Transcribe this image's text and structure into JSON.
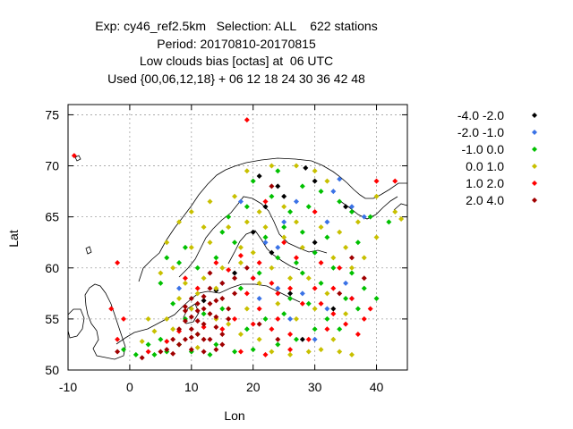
{
  "chart_data": {
    "type": "scatter",
    "title_lines": [
      "Exp: cy46_ref2.5km   Selection: ALL    622 stations",
      "Period: 20170810-20170815",
      "Low clouds bias [octas] at  06 UTC",
      "Used {00,06,12,18} + 06 12 18 24 30 36 42 48"
    ],
    "xlabel": "Lon",
    "ylabel": "Lat",
    "xlim": [
      -10,
      45
    ],
    "ylim": [
      50,
      76
    ],
    "xticks": [
      -10,
      0,
      10,
      20,
      30,
      40
    ],
    "yticks": [
      50,
      55,
      60,
      65,
      70,
      75
    ],
    "grid": true,
    "legend_position": "right",
    "series": [
      {
        "name": "-4.0 -2.0",
        "color": "#000000",
        "points": [
          [
            28.5,
            69.8
          ],
          [
            30,
            68.5
          ],
          [
            25,
            67
          ],
          [
            22,
            66
          ],
          [
            20,
            63.5
          ],
          [
            30,
            62.5
          ],
          [
            23,
            61.5
          ],
          [
            17,
            59.5
          ],
          [
            14,
            57.8
          ],
          [
            12,
            56.8
          ],
          [
            28,
            53
          ],
          [
            33,
            56
          ],
          [
            26,
            57.5
          ],
          [
            35,
            66
          ],
          [
            21,
            69
          ],
          [
            24,
            68
          ]
        ]
      },
      {
        "name": "-2.0 -1.0",
        "color": "#3a72e6",
        "points": [
          [
            34,
            68.7
          ],
          [
            33,
            67.5
          ],
          [
            36,
            66
          ],
          [
            25,
            64.5
          ],
          [
            22,
            62.5
          ],
          [
            30,
            61.5
          ],
          [
            24,
            58
          ],
          [
            35,
            58.5
          ],
          [
            32,
            56
          ],
          [
            26,
            55
          ],
          [
            30,
            53
          ],
          [
            20,
            59
          ],
          [
            15,
            58.5
          ],
          [
            8,
            58
          ],
          [
            18,
            66.5
          ],
          [
            32,
            64.5
          ],
          [
            38,
            65
          ],
          [
            21,
            57
          ],
          [
            28,
            57.5
          ],
          [
            36,
            57
          ],
          [
            24,
            62
          ],
          [
            27,
            66.5
          ]
        ]
      },
      {
        "name": "-1.0 0.0",
        "color": "#00c000",
        "points": [
          [
            24,
            69.5
          ],
          [
            28,
            68
          ],
          [
            20,
            68.5
          ],
          [
            31,
            67.5
          ],
          [
            34,
            66.5
          ],
          [
            36,
            65.5
          ],
          [
            39,
            65
          ],
          [
            42,
            64.5
          ],
          [
            25,
            64
          ],
          [
            22,
            63
          ],
          [
            28,
            63.5
          ],
          [
            32,
            63
          ],
          [
            37,
            62.5
          ],
          [
            30,
            61.5
          ],
          [
            27,
            60.5
          ],
          [
            33,
            60
          ],
          [
            36,
            59.5
          ],
          [
            38,
            58
          ],
          [
            35,
            57
          ],
          [
            32,
            55
          ],
          [
            30,
            54
          ],
          [
            27,
            53
          ],
          [
            24,
            52.5
          ],
          [
            20,
            52
          ],
          [
            17,
            51.8
          ],
          [
            14,
            52.5
          ],
          [
            11,
            53.5
          ],
          [
            8,
            52.5
          ],
          [
            6,
            51.8
          ],
          [
            4,
            51.5
          ],
          [
            3,
            52.5
          ],
          [
            5,
            53
          ],
          [
            1,
            51.5
          ],
          [
            -1,
            52
          ],
          [
            9,
            55
          ],
          [
            12,
            55.5
          ],
          [
            15,
            56
          ],
          [
            18,
            58
          ],
          [
            21,
            59.5
          ],
          [
            24,
            61
          ],
          [
            17,
            62.5
          ],
          [
            14,
            61
          ],
          [
            11,
            60
          ],
          [
            8,
            60.5
          ],
          [
            6,
            61
          ],
          [
            16,
            65
          ],
          [
            19,
            66
          ],
          [
            23,
            67
          ],
          [
            26,
            65.5
          ],
          [
            29,
            66
          ],
          [
            15,
            63.5
          ],
          [
            9,
            62
          ],
          [
            26,
            57
          ],
          [
            29,
            56.5
          ],
          [
            34,
            54
          ],
          [
            37,
            56
          ],
          [
            40,
            57
          ],
          [
            25,
            55.5
          ],
          [
            22,
            55
          ],
          [
            19,
            54
          ],
          [
            10,
            51.8
          ],
          [
            13,
            51.5
          ],
          [
            7,
            56.5
          ],
          [
            5,
            58.5
          ],
          [
            31,
            58.5
          ],
          [
            28,
            59.5
          ]
        ]
      },
      {
        "name": "0.0 1.0",
        "color": "#c8c000",
        "points": [
          [
            19,
            69.5
          ],
          [
            23,
            70
          ],
          [
            27,
            70
          ],
          [
            30,
            69.5
          ],
          [
            32,
            68.5
          ],
          [
            40,
            67
          ],
          [
            43,
            65.5
          ],
          [
            44,
            64.8
          ],
          [
            37,
            64.5
          ],
          [
            34,
            63.5
          ],
          [
            31,
            64
          ],
          [
            28,
            62
          ],
          [
            25,
            63
          ],
          [
            22,
            64
          ],
          [
            19,
            64.5
          ],
          [
            16,
            64
          ],
          [
            13,
            62.5
          ],
          [
            10,
            62
          ],
          [
            7,
            60
          ],
          [
            5,
            59.5
          ],
          [
            9,
            58.5
          ],
          [
            12,
            59
          ],
          [
            15,
            60
          ],
          [
            18,
            60.5
          ],
          [
            20,
            61.5
          ],
          [
            23,
            60
          ],
          [
            26,
            59
          ],
          [
            29,
            59
          ],
          [
            32,
            57.5
          ],
          [
            35,
            55.5
          ],
          [
            33,
            53
          ],
          [
            31,
            52
          ],
          [
            29,
            51.8
          ],
          [
            26,
            51.5
          ],
          [
            23,
            51.8
          ],
          [
            21,
            53
          ],
          [
            18,
            53.5
          ],
          [
            16,
            54.5
          ],
          [
            14,
            55
          ],
          [
            10,
            56
          ],
          [
            8,
            57
          ],
          [
            6,
            55
          ],
          [
            4,
            53.8
          ],
          [
            2,
            52.8
          ],
          [
            7,
            54
          ],
          [
            11,
            52.2
          ],
          [
            3,
            55
          ],
          [
            24,
            56.5
          ],
          [
            27,
            55
          ],
          [
            30,
            56
          ],
          [
            21,
            58.5
          ],
          [
            19,
            56
          ],
          [
            14,
            58
          ],
          [
            11,
            57.5
          ],
          [
            25,
            66
          ],
          [
            27,
            64.5
          ],
          [
            17,
            67
          ],
          [
            21,
            65.5
          ],
          [
            12,
            64
          ],
          [
            6,
            62.5
          ],
          [
            8,
            64.5
          ],
          [
            10,
            65.5
          ],
          [
            13,
            66.5
          ],
          [
            18,
            62
          ],
          [
            33,
            61
          ],
          [
            35,
            62
          ],
          [
            36,
            60
          ],
          [
            38,
            61
          ],
          [
            40,
            63
          ],
          [
            36,
            51.5
          ],
          [
            34,
            51.8
          ]
        ]
      },
      {
        "name": "1.0 2.0",
        "color": "#ff0000",
        "points": [
          [
            19,
            74.5
          ],
          [
            -9,
            71
          ],
          [
            40,
            68.5
          ],
          [
            30,
            65.5
          ],
          [
            25,
            62.5
          ],
          [
            21,
            60.5
          ],
          [
            18,
            61.2
          ],
          [
            16,
            59.8
          ],
          [
            14,
            60.5
          ],
          [
            20,
            59
          ],
          [
            23,
            58.5
          ],
          [
            26,
            58
          ],
          [
            28,
            56.5
          ],
          [
            31,
            56.5
          ],
          [
            33,
            55.5
          ],
          [
            35,
            54.5
          ],
          [
            37,
            53.5
          ],
          [
            32,
            54
          ],
          [
            29,
            53
          ],
          [
            26,
            53.5
          ],
          [
            23,
            54
          ],
          [
            20,
            54.5
          ],
          [
            17,
            55
          ],
          [
            21,
            56
          ],
          [
            24,
            55
          ],
          [
            15,
            54
          ],
          [
            12,
            54.2
          ],
          [
            8,
            53.8
          ],
          [
            6,
            52.8
          ],
          [
            3,
            51.8
          ],
          [
            -2,
            53
          ],
          [
            -1,
            55
          ],
          [
            -3,
            56
          ],
          [
            -2,
            60.5
          ],
          [
            26,
            52
          ],
          [
            22,
            51.5
          ],
          [
            18,
            51.8
          ],
          [
            36,
            57
          ],
          [
            33,
            58
          ],
          [
            39,
            56
          ],
          [
            38,
            55
          ],
          [
            24,
            57.5
          ],
          [
            30,
            58
          ],
          [
            19,
            57.5
          ],
          [
            11,
            58
          ],
          [
            9,
            59
          ],
          [
            34,
            60
          ],
          [
            31,
            60.5
          ],
          [
            27,
            61
          ],
          [
            22,
            66.5
          ],
          [
            43,
            68.5
          ]
        ]
      },
      {
        "name": "2.0 4.0",
        "color": "#a00000",
        "points": [
          [
            8,
            54
          ],
          [
            9,
            54.8
          ],
          [
            10,
            55.2
          ],
          [
            11,
            55.8
          ],
          [
            12,
            56
          ],
          [
            13,
            55.5
          ],
          [
            14,
            55.2
          ],
          [
            12,
            54.5
          ],
          [
            11,
            53.5
          ],
          [
            10,
            53.2
          ],
          [
            9,
            53
          ],
          [
            8,
            52.5
          ],
          [
            7,
            53
          ],
          [
            6,
            52
          ],
          [
            5,
            51.8
          ],
          [
            10,
            52
          ],
          [
            12,
            51.8
          ],
          [
            14,
            52
          ],
          [
            15,
            52.5
          ],
          [
            13,
            53
          ],
          [
            11,
            54.8
          ],
          [
            13,
            56.5
          ],
          [
            14,
            56.8
          ],
          [
            15,
            57
          ],
          [
            12,
            57.2
          ],
          [
            10,
            57
          ],
          [
            9,
            56.2
          ],
          [
            13,
            58
          ],
          [
            15,
            58.5
          ],
          [
            17,
            57.5
          ],
          [
            16,
            56
          ],
          [
            16,
            55
          ],
          [
            11,
            56.5
          ],
          [
            14,
            54.2
          ],
          [
            9,
            55.8
          ],
          [
            15,
            53.5
          ],
          [
            7,
            51.6
          ],
          [
            12,
            53
          ],
          [
            10,
            54
          ],
          [
            17,
            59
          ],
          [
            19,
            60
          ],
          [
            13,
            59.5
          ],
          [
            23,
            68
          ],
          [
            38,
            59
          ],
          [
            34,
            57.5
          ],
          [
            24,
            53
          ],
          [
            21,
            54.5
          ],
          [
            36,
            61
          ],
          [
            2,
            51.2
          ],
          [
            -2,
            51.8
          ]
        ]
      }
    ]
  }
}
